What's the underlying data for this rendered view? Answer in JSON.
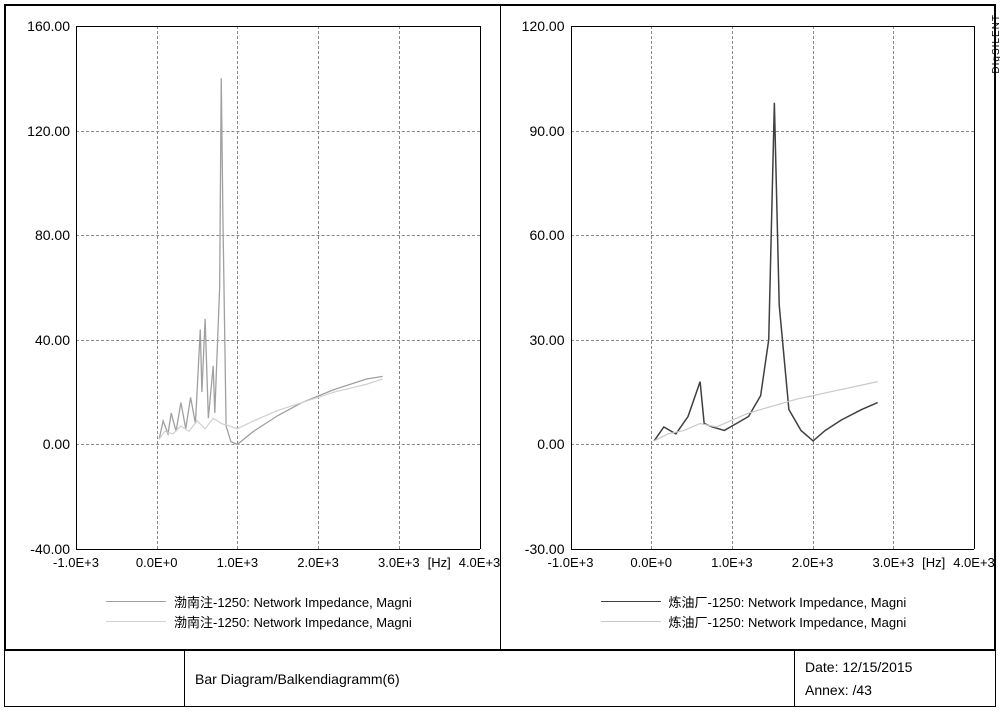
{
  "footer": {
    "title": "Bar Diagram/Balkendiagramm(6)",
    "date_label": "Date:",
    "date_value": "12/15/2015",
    "annex_label": "Annex:",
    "annex_value": "/43"
  },
  "brand_label": "DIgSILENT",
  "chart_left": {
    "ylim": [
      -40,
      160
    ],
    "yticks": [
      -40,
      0,
      40,
      80,
      120,
      160
    ],
    "xlim": [
      -1000,
      4000
    ],
    "xticks": [
      -1000,
      0,
      1000,
      2000,
      3000,
      4000
    ],
    "x_unit": "[Hz]",
    "x_unit_pos": 3500,
    "grid_color": "#888888",
    "axis_color": "#000000",
    "background_color": "#ffffff",
    "tick_fontsize": 14,
    "series": [
      {
        "color": "#a0a0a0",
        "width": 1.3,
        "legend": "渤南注-1250: Network Impedance, Magni",
        "points": [
          [
            30,
            2
          ],
          [
            80,
            9
          ],
          [
            140,
            4
          ],
          [
            180,
            12
          ],
          [
            240,
            5
          ],
          [
            300,
            16
          ],
          [
            360,
            6
          ],
          [
            420,
            18
          ],
          [
            480,
            8
          ],
          [
            540,
            44
          ],
          [
            560,
            20
          ],
          [
            600,
            48
          ],
          [
            640,
            10
          ],
          [
            700,
            30
          ],
          [
            720,
            12
          ],
          [
            780,
            60
          ],
          [
            800,
            140
          ],
          [
            820,
            88
          ],
          [
            860,
            7
          ],
          [
            920,
            1
          ],
          [
            1000,
            0
          ],
          [
            1200,
            5
          ],
          [
            1500,
            11
          ],
          [
            1800,
            16
          ],
          [
            2200,
            21
          ],
          [
            2600,
            25
          ],
          [
            2800,
            26
          ]
        ]
      },
      {
        "color": "#d0d0d0",
        "width": 1.2,
        "legend": "渤南注-1250: Network Impedance, Magni",
        "points": [
          [
            30,
            2
          ],
          [
            100,
            5
          ],
          [
            200,
            4
          ],
          [
            300,
            7
          ],
          [
            400,
            5
          ],
          [
            500,
            9
          ],
          [
            600,
            6
          ],
          [
            700,
            10
          ],
          [
            800,
            8
          ],
          [
            900,
            7
          ],
          [
            1000,
            6
          ],
          [
            1200,
            9
          ],
          [
            1500,
            13
          ],
          [
            1800,
            16
          ],
          [
            2200,
            20
          ],
          [
            2600,
            23
          ],
          [
            2800,
            25
          ]
        ]
      }
    ]
  },
  "chart_right": {
    "ylim": [
      -30,
      120
    ],
    "yticks": [
      -30,
      0,
      30,
      60,
      90,
      120
    ],
    "xlim": [
      -1000,
      4000
    ],
    "xticks": [
      -1000,
      0,
      1000,
      2000,
      3000,
      4000
    ],
    "x_unit": "[Hz]",
    "x_unit_pos": 3500,
    "grid_color": "#888888",
    "axis_color": "#000000",
    "background_color": "#ffffff",
    "tick_fontsize": 14,
    "series": [
      {
        "color": "#404040",
        "width": 1.5,
        "legend": "炼油厂-1250: Network Impedance, Magni",
        "points": [
          [
            30,
            1
          ],
          [
            150,
            5
          ],
          [
            300,
            3
          ],
          [
            450,
            8
          ],
          [
            600,
            18
          ],
          [
            650,
            6
          ],
          [
            750,
            5
          ],
          [
            900,
            4
          ],
          [
            1050,
            6
          ],
          [
            1200,
            8
          ],
          [
            1350,
            14
          ],
          [
            1450,
            30
          ],
          [
            1520,
            98
          ],
          [
            1580,
            40
          ],
          [
            1700,
            10
          ],
          [
            1850,
            4
          ],
          [
            2000,
            1
          ],
          [
            2150,
            4
          ],
          [
            2350,
            7
          ],
          [
            2600,
            10
          ],
          [
            2800,
            12
          ]
        ]
      },
      {
        "color": "#c8c8c8",
        "width": 1.2,
        "legend": "炼油厂-1250: Network Impedance, Magni",
        "points": [
          [
            30,
            1
          ],
          [
            200,
            3
          ],
          [
            400,
            4
          ],
          [
            600,
            6
          ],
          [
            800,
            5
          ],
          [
            1000,
            7
          ],
          [
            1200,
            9
          ],
          [
            1500,
            11
          ],
          [
            1800,
            13
          ],
          [
            2200,
            15
          ],
          [
            2600,
            17
          ],
          [
            2800,
            18
          ]
        ]
      }
    ]
  }
}
